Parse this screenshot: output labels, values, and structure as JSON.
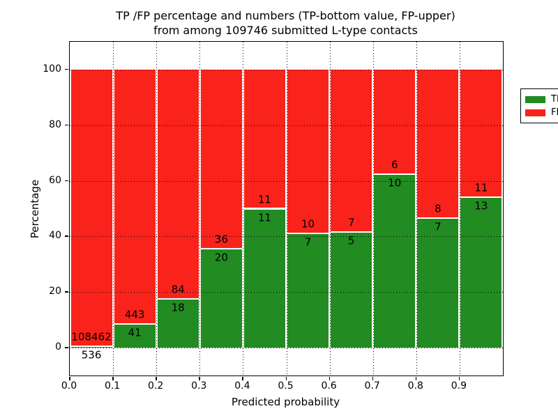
{
  "figure": {
    "title_line1": "TP /FP percentage and numbers (TP-bottom value, FP-upper)",
    "title_line2": "from among 109746 submitted L-type contacts"
  },
  "chart_data": {
    "type": "bar",
    "variant": "stacked-percentage",
    "title": "TP /FP percentage and numbers (TP-bottom value, FP-upper) from among 109746 submitted L-type contacts",
    "xlabel": "Predicted probability",
    "ylabel": "Percentage",
    "total_contacts": 109746,
    "xlim": [
      0.0,
      1.0
    ],
    "ylim": [
      -10,
      110
    ],
    "xtick_labels": [
      "0.0",
      "0.1",
      "0.2",
      "0.3",
      "0.4",
      "0.5",
      "0.6",
      "0.7",
      "0.8",
      "0.9"
    ],
    "ytick_values": [
      0,
      20,
      40,
      60,
      80,
      100
    ],
    "bin_edges": [
      0.0,
      0.1,
      0.2,
      0.3,
      0.4,
      0.5,
      0.6,
      0.7,
      0.8,
      0.9,
      1.0
    ],
    "series": [
      {
        "name": "TP",
        "color": "#228b22",
        "counts": [
          536,
          41,
          18,
          20,
          11,
          7,
          5,
          10,
          7,
          13
        ]
      },
      {
        "name": "FP",
        "color": "#f9231b",
        "counts": [
          108462,
          443,
          84,
          36,
          11,
          10,
          7,
          6,
          8,
          11
        ]
      }
    ],
    "tp_percent_per_bin": [
      0.49,
      8.47,
      17.65,
      35.71,
      50.0,
      41.18,
      41.67,
      62.5,
      46.67,
      54.17
    ],
    "bar_total_height_percent": 100,
    "value_label_rule": "TP count below segment boundary, FP count above segment boundary",
    "legend": {
      "position": "upper right",
      "entries": [
        "TP",
        "FP"
      ]
    },
    "grid": true,
    "grid_style": "dotted"
  }
}
